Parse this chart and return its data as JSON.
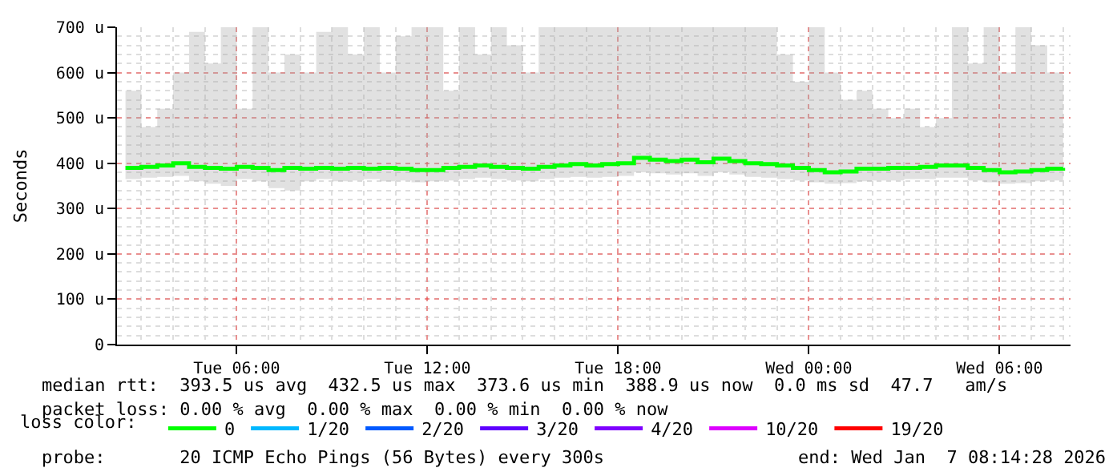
{
  "chart_data": {
    "type": "line",
    "ylabel": "Seconds",
    "legend_title": "loss color:",
    "legend": "bottom",
    "grid": true,
    "marker": "none",
    "line_style": "solid",
    "x": [
      "2026-01-06T02:30",
      "2026-01-06T03:00",
      "2026-01-06T03:30",
      "2026-01-06T04:00",
      "2026-01-06T04:30",
      "2026-01-06T05:00",
      "2026-01-06T05:30",
      "2026-01-06T06:00",
      "2026-01-06T06:30",
      "2026-01-06T07:00",
      "2026-01-06T07:30",
      "2026-01-06T08:00",
      "2026-01-06T08:30",
      "2026-01-06T09:00",
      "2026-01-06T09:30",
      "2026-01-06T10:00",
      "2026-01-06T10:30",
      "2026-01-06T11:00",
      "2026-01-06T11:30",
      "2026-01-06T12:00",
      "2026-01-06T12:30",
      "2026-01-06T13:00",
      "2026-01-06T13:30",
      "2026-01-06T14:00",
      "2026-01-06T14:30",
      "2026-01-06T15:00",
      "2026-01-06T15:30",
      "2026-01-06T16:00",
      "2026-01-06T16:30",
      "2026-01-06T17:00",
      "2026-01-06T17:30",
      "2026-01-06T18:00",
      "2026-01-06T18:30",
      "2026-01-06T19:00",
      "2026-01-06T19:30",
      "2026-01-06T20:00",
      "2026-01-06T20:30",
      "2026-01-06T21:00",
      "2026-01-06T21:30",
      "2026-01-06T22:00",
      "2026-01-06T22:30",
      "2026-01-06T23:00",
      "2026-01-06T23:30",
      "2026-01-07T00:00",
      "2026-01-07T00:30",
      "2026-01-07T01:00",
      "2026-01-07T01:30",
      "2026-01-07T02:00",
      "2026-01-07T02:30",
      "2026-01-07T03:00",
      "2026-01-07T03:30",
      "2026-01-07T04:00",
      "2026-01-07T04:30",
      "2026-01-07T05:00",
      "2026-01-07T05:30",
      "2026-01-07T06:00",
      "2026-01-07T06:30",
      "2026-01-07T07:00",
      "2026-01-07T07:30",
      "2026-01-07T08:00"
    ],
    "xlim": [
      "2026-01-06T02:14",
      "2026-01-07T08:14"
    ],
    "xticks": [
      {
        "value": "2026-01-06T06:00",
        "label": "Tue 06:00"
      },
      {
        "value": "2026-01-06T12:00",
        "label": "Tue 12:00"
      },
      {
        "value": "2026-01-06T18:00",
        "label": "Tue 18:00"
      },
      {
        "value": "2026-01-07T00:00",
        "label": "Wed 00:00"
      },
      {
        "value": "2026-01-07T06:00",
        "label": "Wed 06:00"
      }
    ],
    "ylim": [
      0,
      700
    ],
    "yticks": [
      0,
      {
        "value": 100,
        "label": "100 u"
      },
      {
        "value": 200,
        "label": "200 u"
      },
      {
        "value": 300,
        "label": "300 u"
      },
      {
        "value": 400,
        "label": "400 u"
      },
      {
        "value": 500,
        "label": "500 u"
      },
      {
        "value": 600,
        "label": "600 u"
      },
      {
        "value": 700,
        "label": "700 u"
      }
    ],
    "series": [
      {
        "name": "0",
        "color": "#00ff00",
        "values": [
          390,
          392,
          395,
          400,
          392,
          390,
          388,
          392,
          390,
          385,
          390,
          388,
          390,
          388,
          390,
          388,
          390,
          388,
          385,
          385,
          390,
          392,
          395,
          392,
          390,
          388,
          392,
          395,
          398,
          395,
          398,
          400,
          412,
          408,
          405,
          408,
          402,
          410,
          405,
          400,
          398,
          395,
          390,
          385,
          380,
          382,
          388,
          388,
          390,
          390,
          392,
          395,
          395,
          390,
          385,
          380,
          382,
          385,
          388,
          390
        ],
        "lower": [
          365,
          368,
          370,
          372,
          360,
          355,
          350,
          365,
          360,
          345,
          340,
          360,
          365,
          360,
          362,
          365,
          360,
          362,
          358,
          360,
          362,
          365,
          368,
          365,
          362,
          360,
          365,
          368,
          370,
          368,
          370,
          372,
          380,
          378,
          375,
          378,
          372,
          380,
          375,
          370,
          368,
          365,
          362,
          358,
          355,
          356,
          360,
          362,
          362,
          365,
          365,
          368,
          368,
          362,
          358,
          355,
          356,
          360,
          362,
          365
        ],
        "upper": [
          560,
          480,
          520,
          600,
          690,
          620,
          700,
          520,
          700,
          600,
          640,
          600,
          690,
          700,
          640,
          700,
          600,
          680,
          700,
          700,
          560,
          700,
          640,
          700,
          660,
          600,
          700,
          700,
          700,
          700,
          700,
          700,
          700,
          700,
          700,
          700,
          700,
          700,
          700,
          700,
          700,
          640,
          580,
          700,
          600,
          540,
          560,
          520,
          500,
          520,
          480,
          500,
          700,
          620,
          700,
          600,
          700,
          660,
          600,
          600
        ]
      },
      {
        "name": "1/20",
        "color": "#00b8ff",
        "values": [
          null,
          null,
          null,
          null,
          null,
          null,
          null,
          null,
          null,
          null,
          null,
          null,
          null,
          null,
          null,
          null,
          null,
          null,
          null,
          null,
          null,
          null,
          null,
          null,
          null,
          null,
          null,
          null,
          null,
          null,
          null,
          null,
          null,
          null,
          null,
          null,
          null,
          null,
          null,
          null,
          null,
          null,
          null,
          null,
          null,
          null,
          null,
          null,
          null,
          null,
          null,
          null,
          null,
          null,
          null,
          null,
          null,
          null,
          null,
          null
        ]
      },
      {
        "name": "2/20",
        "color": "#0059ff",
        "values": [
          null,
          null,
          null,
          null,
          null,
          null,
          null,
          null,
          null,
          null,
          null,
          null,
          null,
          null,
          null,
          null,
          null,
          null,
          null,
          null,
          null,
          null,
          null,
          null,
          null,
          null,
          null,
          null,
          null,
          null,
          null,
          null,
          null,
          null,
          null,
          null,
          null,
          null,
          null,
          null,
          null,
          null,
          null,
          null,
          null,
          null,
          null,
          null,
          null,
          null,
          null,
          null,
          null,
          null,
          null,
          null,
          null,
          null,
          null,
          null
        ]
      },
      {
        "name": "3/20",
        "color": "#5e00ff",
        "values": [
          null,
          null,
          null,
          null,
          null,
          null,
          null,
          null,
          null,
          null,
          null,
          null,
          null,
          null,
          null,
          null,
          null,
          null,
          null,
          null,
          null,
          null,
          null,
          null,
          null,
          null,
          null,
          null,
          null,
          null,
          null,
          null,
          null,
          null,
          null,
          null,
          null,
          null,
          null,
          null,
          null,
          null,
          null,
          null,
          null,
          null,
          null,
          null,
          null,
          null,
          null,
          null,
          null,
          null,
          null,
          null,
          null,
          null,
          null,
          null
        ]
      },
      {
        "name": "4/20",
        "color": "#7e00ff",
        "values": [
          null,
          null,
          null,
          null,
          null,
          null,
          null,
          null,
          null,
          null,
          null,
          null,
          null,
          null,
          null,
          null,
          null,
          null,
          null,
          null,
          null,
          null,
          null,
          null,
          null,
          null,
          null,
          null,
          null,
          null,
          null,
          null,
          null,
          null,
          null,
          null,
          null,
          null,
          null,
          null,
          null,
          null,
          null,
          null,
          null,
          null,
          null,
          null,
          null,
          null,
          null,
          null,
          null,
          null,
          null,
          null,
          null,
          null,
          null,
          null
        ]
      },
      {
        "name": "10/20",
        "color": "#dd00ff",
        "values": [
          null,
          null,
          null,
          null,
          null,
          null,
          null,
          null,
          null,
          null,
          null,
          null,
          null,
          null,
          null,
          null,
          null,
          null,
          null,
          null,
          null,
          null,
          null,
          null,
          null,
          null,
          null,
          null,
          null,
          null,
          null,
          null,
          null,
          null,
          null,
          null,
          null,
          null,
          null,
          null,
          null,
          null,
          null,
          null,
          null,
          null,
          null,
          null,
          null,
          null,
          null,
          null,
          null,
          null,
          null,
          null,
          null,
          null,
          null,
          null
        ]
      },
      {
        "name": "19/20",
        "color": "#ff0000",
        "values": [
          null,
          null,
          null,
          null,
          null,
          null,
          null,
          null,
          null,
          null,
          null,
          null,
          null,
          null,
          null,
          null,
          null,
          null,
          null,
          null,
          null,
          null,
          null,
          null,
          null,
          null,
          null,
          null,
          null,
          null,
          null,
          null,
          null,
          null,
          null,
          null,
          null,
          null,
          null,
          null,
          null,
          null,
          null,
          null,
          null,
          null,
          null,
          null,
          null,
          null,
          null,
          null,
          null,
          null,
          null,
          null,
          null,
          null,
          null,
          null
        ]
      }
    ],
    "annotations": [
      "median rtt:  393.5 us avg  432.5 us max  373.6 us min  388.9 us now  0.0 ms sd  47.7   am/s",
      "packet loss: 0.00 % avg  0.00 % max  0.00 % min  0.00 % now",
      "probe:       20 ICMP Echo Pings (56 Bytes) every 300s",
      "end: Wed Jan  7 08:14:28 2026"
    ]
  }
}
